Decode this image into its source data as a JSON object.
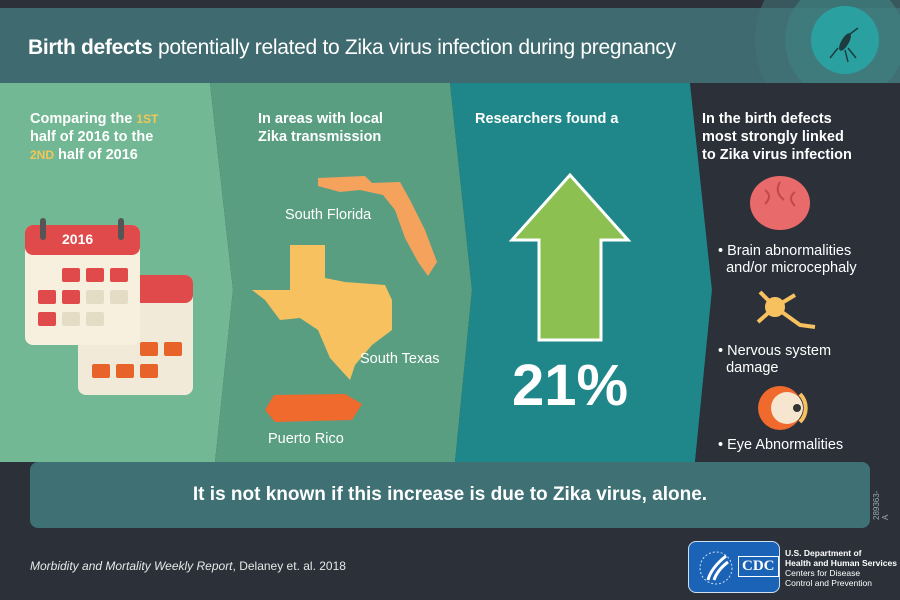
{
  "header": {
    "title_bold": "Birth defects",
    "title_rest": " potentially related to Zika virus infection during pregnancy",
    "icon": "mosquito-icon"
  },
  "panel1": {
    "line1": "Comparing the ",
    "sup1": "1ST",
    "line2": "half of 2016 to the",
    "sup2": "2ND",
    "line3": " half of 2016",
    "calendar_year": "2016"
  },
  "panel2": {
    "heading1": "In areas with local",
    "heading2": "Zika transmission",
    "regions": [
      "South Florida",
      "South Texas",
      "Puerto Rico"
    ]
  },
  "panel3": {
    "heading": "Researchers found a",
    "value": "21%",
    "icon": "arrow-up-icon"
  },
  "panel4": {
    "heading1": "In the birth defects",
    "heading2": "most strongly linked",
    "heading3": "to Zika virus infection",
    "items": [
      {
        "line1": "Brain abnormalities",
        "line2": "and/or microcephaly",
        "icon": "brain-icon"
      },
      {
        "line1": "Nervous system",
        "line2": "damage",
        "icon": "neuron-icon"
      },
      {
        "line1": "Eye Abnormalities",
        "line2": "",
        "icon": "eye-icon"
      }
    ]
  },
  "banner": {
    "text": "It is not known if this increase is due to Zika virus, alone."
  },
  "footer": {
    "cite_italic": "Morbidity and Mortality Weekly Report",
    "cite_rest": ", Delaney et. al. 2018",
    "code": "289363-A",
    "logo_text": "CDC",
    "org1": "U.S. Department of",
    "org2": "Health and Human Services",
    "org3": "Centers for Disease",
    "org4": "Control and Prevention"
  },
  "colors": {
    "panel1": "#72b894",
    "panel2": "#5a9e82",
    "panel3": "#1f8789",
    "panel4": "#2b3039",
    "header": "#3f6b70",
    "accent": "#f1c75a",
    "arrow": "#8cc152",
    "calendar_red": "#e04a4a",
    "calendar_orange": "#e8632a"
  }
}
